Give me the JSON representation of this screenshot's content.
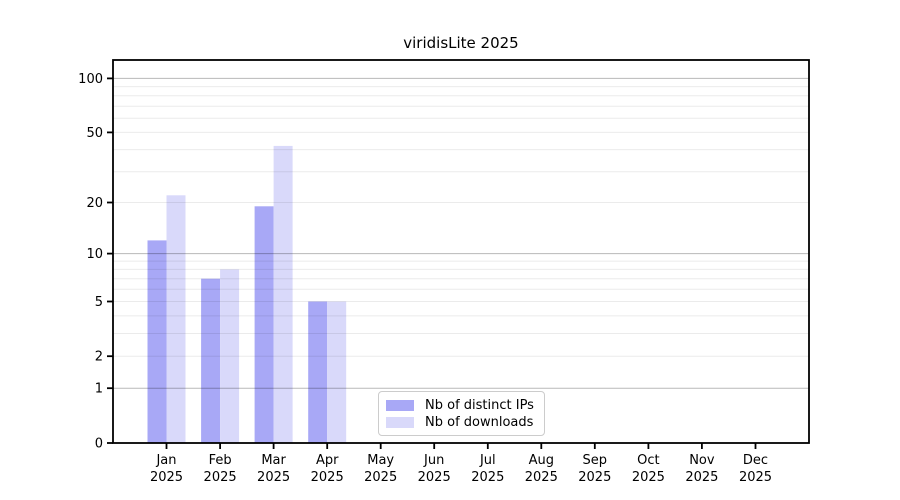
{
  "figure": {
    "background": "#ffffff"
  },
  "chart_data": {
    "type": "bar",
    "title": "viridisLite 2025",
    "y_scale": "log1p",
    "grid": "on",
    "legend_position": "bottom-center",
    "categories": [
      "Jan 2025",
      "Feb 2025",
      "Mar 2025",
      "Apr 2025",
      "May 2025",
      "Jun 2025",
      "Jul 2025",
      "Aug 2025",
      "Sep 2025",
      "Oct 2025",
      "Nov 2025",
      "Dec 2025"
    ],
    "x_tick_labels_line1": [
      "Jan",
      "Feb",
      "Mar",
      "Apr",
      "May",
      "Jun",
      "Jul",
      "Aug",
      "Sep",
      "Oct",
      "Nov",
      "Dec"
    ],
    "x_tick_labels_line2": [
      "2025",
      "2025",
      "2025",
      "2025",
      "2025",
      "2025",
      "2025",
      "2025",
      "2025",
      "2025",
      "2025",
      "2025"
    ],
    "series": [
      {
        "name": "Nb of distinct IPs",
        "key": "distinct-ips",
        "color": "#a8a8f6",
        "values": [
          12,
          7,
          19,
          5,
          0,
          0,
          0,
          0,
          0,
          0,
          0,
          0
        ]
      },
      {
        "name": "Nb of downloads",
        "key": "downloads",
        "color": "#d9d9fa",
        "values": [
          22,
          8,
          42,
          5,
          0,
          0,
          0,
          0,
          0,
          0,
          0,
          0
        ]
      }
    ],
    "y_axis": {
      "tick_values": [
        0,
        1,
        2,
        5,
        10,
        20,
        50,
        100
      ],
      "tick_labels": [
        "0",
        "1",
        "2",
        "5",
        "10",
        "20",
        "50",
        "100"
      ],
      "major_gridlines": [
        1,
        10,
        100
      ],
      "minor_gridlines": [
        2,
        3,
        4,
        5,
        6,
        7,
        8,
        9,
        20,
        30,
        40,
        50,
        60,
        70,
        80,
        90
      ],
      "ylim": [
        0,
        126
      ]
    },
    "colors": {
      "distinct_ips": "#a8a8f6",
      "downloads": "#d9d9fa",
      "grid_major": "rgba(0,0,0,0.28)",
      "grid_minor": "rgba(0,0,0,0.08)",
      "axis": "#000000",
      "tick_text": "#000000",
      "legend_border": "#cccccc"
    }
  }
}
